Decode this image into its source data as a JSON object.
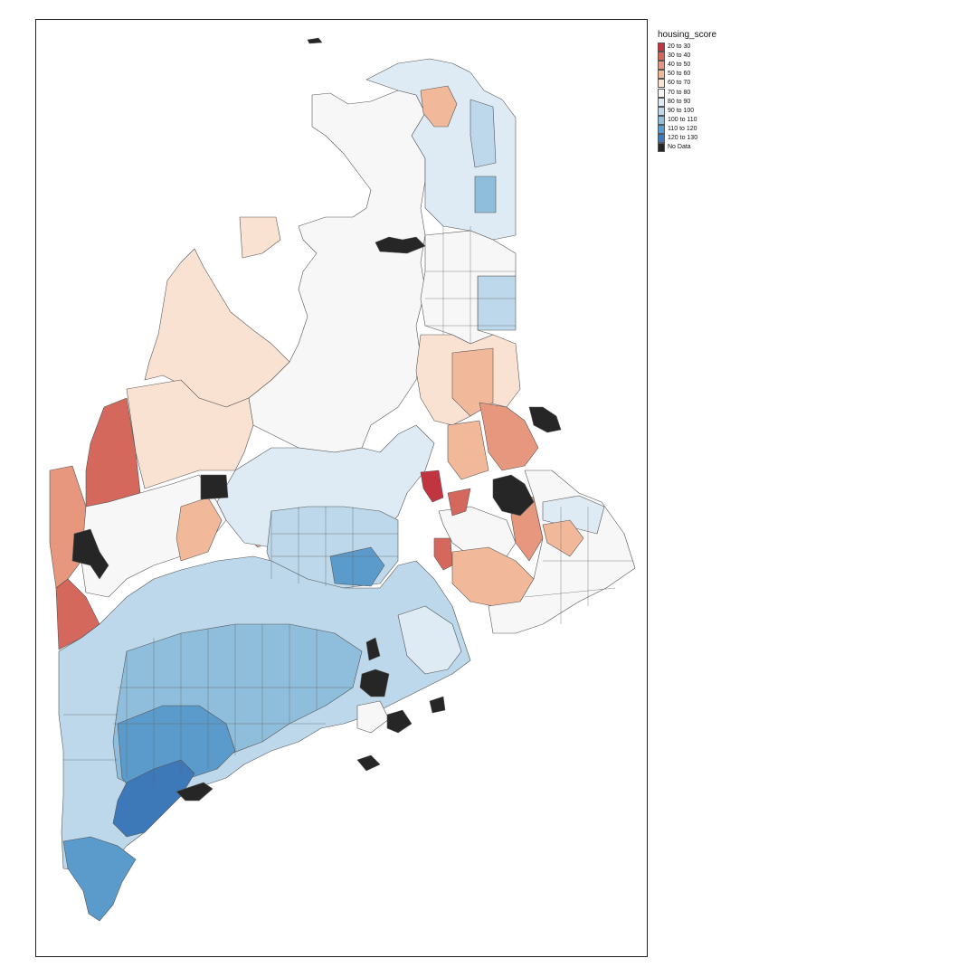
{
  "legend": {
    "title": "housing_score",
    "items": [
      {
        "label": "20 to 30",
        "color": "#c0353f"
      },
      {
        "label": "30 to 40",
        "color": "#d5685d"
      },
      {
        "label": "40 to 50",
        "color": "#e6977d"
      },
      {
        "label": "50 to 60",
        "color": "#f2b89a"
      },
      {
        "label": "60 to 70",
        "color": "#fae2d3"
      },
      {
        "label": "70 to 80",
        "color": "#f7f7f7"
      },
      {
        "label": "80 to 90",
        "color": "#deebf4"
      },
      {
        "label": "90 to 100",
        "color": "#bcd8ea"
      },
      {
        "label": "100 to 110",
        "color": "#8fbedd"
      },
      {
        "label": "110 to 120",
        "color": "#5b9bcb"
      },
      {
        "label": "120 to 130",
        "color": "#3d79b8"
      },
      {
        "label": "No Data",
        "color": "#262626"
      }
    ]
  }
}
